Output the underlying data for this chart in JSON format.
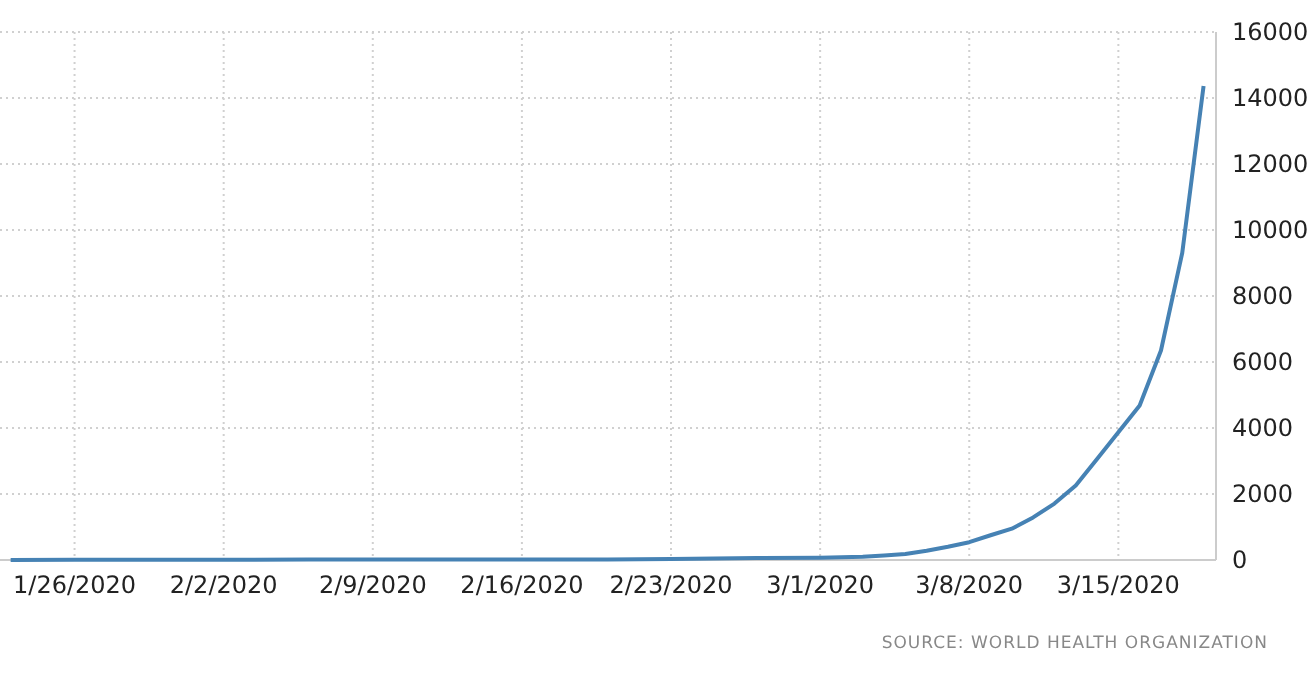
{
  "chart_data": {
    "type": "line",
    "x": [
      "2020-01-23",
      "2020-01-26",
      "2020-01-30",
      "2020-02-02",
      "2020-02-06",
      "2020-02-09",
      "2020-02-13",
      "2020-02-16",
      "2020-02-20",
      "2020-02-23",
      "2020-02-27",
      "2020-03-01",
      "2020-03-02",
      "2020-03-03",
      "2020-03-04",
      "2020-03-05",
      "2020-03-06",
      "2020-03-07",
      "2020-03-08",
      "2020-03-09",
      "2020-03-10",
      "2020-03-11",
      "2020-03-12",
      "2020-03-13",
      "2020-03-14",
      "2020-03-15",
      "2020-03-16",
      "2020-03-17",
      "2020-03-18",
      "2020-03-19"
    ],
    "series": [
      {
        "color": "#4682b4",
        "values": [
          1,
          5,
          6,
          8,
          12,
          12,
          15,
          15,
          15,
          30,
          60,
          70,
          80,
          100,
          140,
          180,
          280,
          400,
          540,
          750,
          950,
          1290,
          1710,
          2260,
          3060,
          3870,
          4680,
          6350,
          9310,
          14360
        ]
      }
    ],
    "xlim": [
      "2020-01-22T12:00",
      "2020-03-19T14:00"
    ],
    "xticks": [
      {
        "value": "2020-01-26",
        "label": "1/26/2020"
      },
      {
        "value": "2020-02-02",
        "label": "2/2/2020"
      },
      {
        "value": "2020-02-09",
        "label": "2/9/2020"
      },
      {
        "value": "2020-02-16",
        "label": "2/16/2020"
      },
      {
        "value": "2020-02-23",
        "label": "2/23/2020"
      },
      {
        "value": "2020-03-01",
        "label": "3/1/2020"
      },
      {
        "value": "2020-03-08",
        "label": "3/8/2020"
      },
      {
        "value": "2020-03-15",
        "label": "3/15/2020"
      }
    ],
    "ylim": [
      0,
      16000
    ],
    "yticks": [
      0,
      2000,
      4000,
      6000,
      8000,
      10000,
      12000,
      14000,
      16000
    ],
    "grid": true,
    "marker": "none",
    "line_style": "solid",
    "annotations": [
      "SOURCE: WORLD HEALTH ORGANIZATION"
    ]
  }
}
